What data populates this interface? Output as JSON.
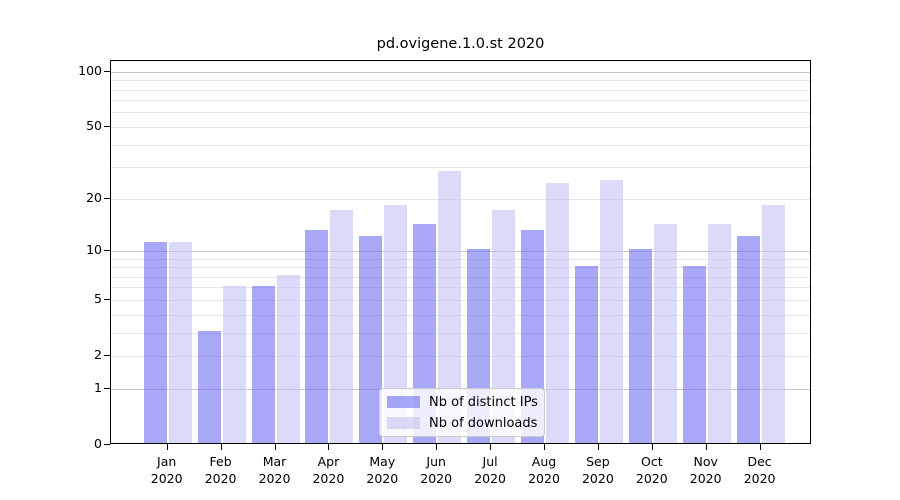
{
  "chart_data": {
    "type": "bar",
    "title": "pd.ovigene.1.0.st 2020",
    "scale": "log10(1+x)",
    "categories": [
      "Jan",
      "Feb",
      "Mar",
      "Apr",
      "May",
      "Jun",
      "Jul",
      "Aug",
      "Sep",
      "Oct",
      "Nov",
      "Dec"
    ],
    "x_year": "2020",
    "series": [
      {
        "name": "Nb of distinct IPs",
        "color": "#a9a9f6",
        "fill": "rgba(110,110,240,0.6)",
        "values": [
          11,
          3,
          6,
          13,
          12,
          14,
          10,
          13,
          8,
          10,
          8,
          12
        ]
      },
      {
        "name": "Nb of downloads",
        "color": "#dbdbf9",
        "fill": "rgba(195,195,245,0.6)",
        "values": [
          11,
          6,
          7,
          17,
          18,
          28,
          17,
          24,
          25,
          14,
          14,
          18
        ]
      }
    ],
    "yticks": [
      0,
      1,
      2,
      5,
      10,
      20,
      50,
      100
    ],
    "ylim": [
      0,
      110
    ],
    "grid": "on",
    "grid_minor_color": "#e8e8e8",
    "grid_major_color": "#c9c9c9",
    "grid_major_values": [
      1,
      10,
      100
    ],
    "legend_position": "lower center",
    "xlabel": "",
    "ylabel": ""
  }
}
